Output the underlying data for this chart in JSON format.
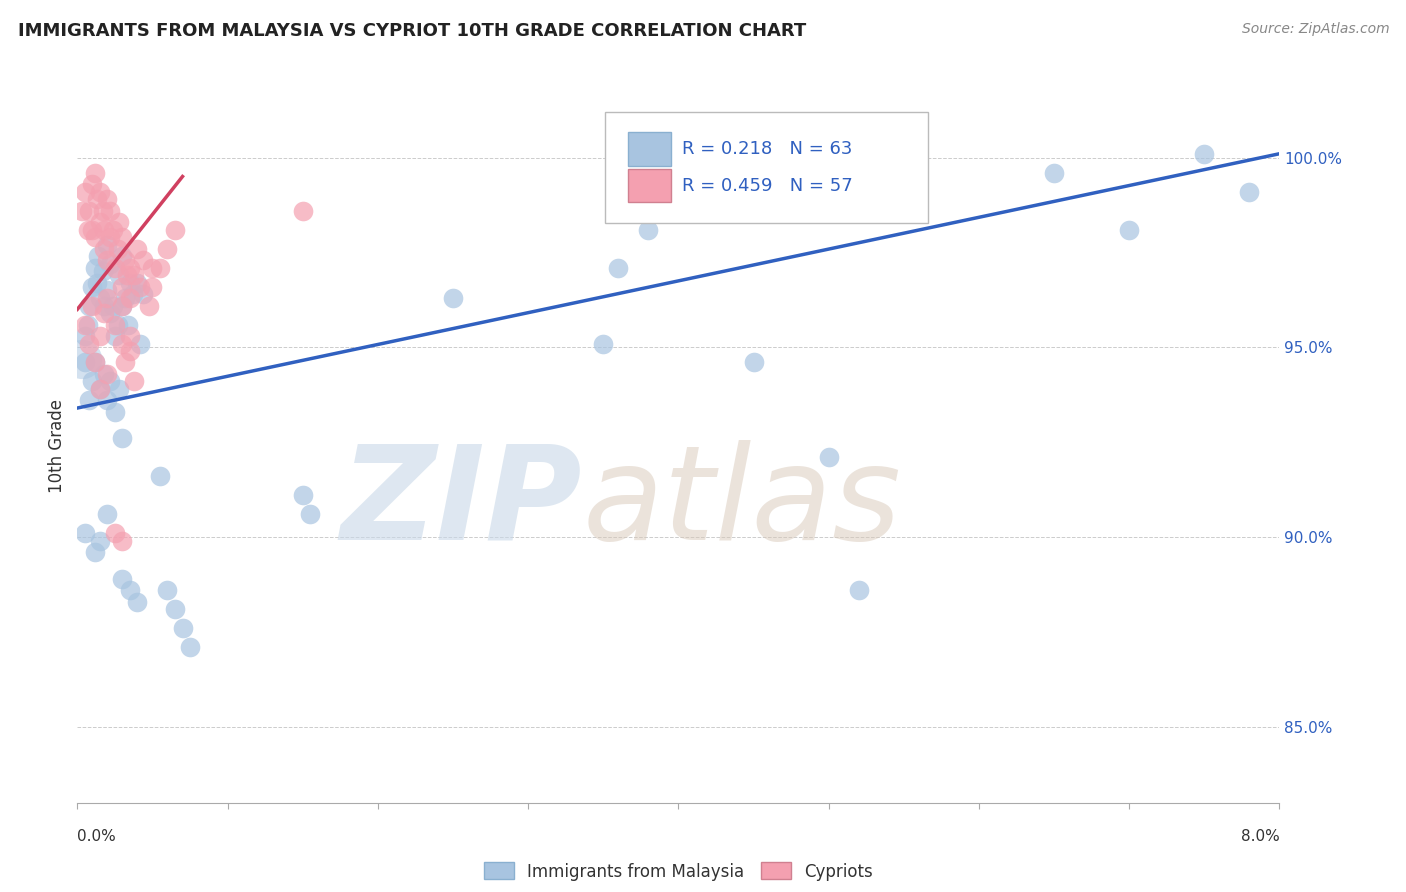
{
  "title": "IMMIGRANTS FROM MALAYSIA VS CYPRIOT 10TH GRADE CORRELATION CHART",
  "source": "Source: ZipAtlas.com",
  "ylabel": "10th Grade",
  "y_ticks": [
    85.0,
    90.0,
    95.0,
    100.0
  ],
  "x_range": [
    0.0,
    8.0
  ],
  "y_range": [
    83.0,
    101.8
  ],
  "R_blue": 0.218,
  "N_blue": 63,
  "R_pink": 0.459,
  "N_pink": 57,
  "legend_label_blue": "Immigrants from Malaysia",
  "legend_label_pink": "Cypriots",
  "blue_color": "#a8c4e0",
  "pink_color": "#f4a0b0",
  "blue_line_color": "#3060c0",
  "pink_line_color": "#d04060",
  "blue_scatter": [
    [
      0.05,
      95.3
    ],
    [
      0.07,
      95.6
    ],
    [
      0.08,
      96.1
    ],
    [
      0.1,
      96.6
    ],
    [
      0.12,
      97.1
    ],
    [
      0.13,
      96.7
    ],
    [
      0.14,
      97.4
    ],
    [
      0.15,
      96.3
    ],
    [
      0.17,
      97.0
    ],
    [
      0.18,
      96.1
    ],
    [
      0.2,
      97.7
    ],
    [
      0.2,
      96.5
    ],
    [
      0.22,
      97.2
    ],
    [
      0.22,
      95.9
    ],
    [
      0.24,
      96.1
    ],
    [
      0.25,
      95.3
    ],
    [
      0.27,
      95.6
    ],
    [
      0.28,
      96.9
    ],
    [
      0.3,
      97.4
    ],
    [
      0.3,
      96.1
    ],
    [
      0.32,
      96.3
    ],
    [
      0.34,
      95.6
    ],
    [
      0.35,
      96.7
    ],
    [
      0.37,
      96.4
    ],
    [
      0.4,
      96.7
    ],
    [
      0.42,
      95.1
    ],
    [
      0.44,
      96.4
    ],
    [
      0.05,
      94.6
    ],
    [
      0.08,
      93.6
    ],
    [
      0.1,
      94.1
    ],
    [
      0.12,
      94.6
    ],
    [
      0.15,
      93.9
    ],
    [
      0.18,
      94.3
    ],
    [
      0.2,
      93.6
    ],
    [
      0.22,
      94.1
    ],
    [
      0.25,
      93.3
    ],
    [
      0.28,
      93.9
    ],
    [
      0.3,
      92.6
    ],
    [
      0.05,
      90.1
    ],
    [
      0.12,
      89.6
    ],
    [
      0.15,
      89.9
    ],
    [
      0.2,
      90.6
    ],
    [
      0.3,
      88.9
    ],
    [
      0.35,
      88.6
    ],
    [
      0.4,
      88.3
    ],
    [
      0.55,
      91.6
    ],
    [
      0.6,
      88.6
    ],
    [
      0.65,
      88.1
    ],
    [
      0.7,
      87.6
    ],
    [
      0.75,
      87.1
    ],
    [
      1.5,
      91.1
    ],
    [
      1.55,
      90.6
    ],
    [
      2.5,
      96.3
    ],
    [
      3.5,
      95.1
    ],
    [
      3.6,
      97.1
    ],
    [
      3.8,
      98.1
    ],
    [
      5.0,
      92.1
    ],
    [
      5.2,
      88.6
    ],
    [
      6.5,
      99.6
    ],
    [
      7.0,
      98.1
    ],
    [
      7.5,
      100.1
    ],
    [
      7.8,
      99.1
    ],
    [
      4.5,
      94.6
    ]
  ],
  "pink_scatter": [
    [
      0.03,
      98.6
    ],
    [
      0.05,
      99.1
    ],
    [
      0.07,
      98.1
    ],
    [
      0.08,
      98.6
    ],
    [
      0.1,
      99.3
    ],
    [
      0.1,
      98.1
    ],
    [
      0.12,
      99.6
    ],
    [
      0.12,
      97.9
    ],
    [
      0.13,
      98.9
    ],
    [
      0.15,
      99.1
    ],
    [
      0.15,
      98.3
    ],
    [
      0.17,
      98.6
    ],
    [
      0.18,
      98.1
    ],
    [
      0.18,
      97.6
    ],
    [
      0.2,
      98.9
    ],
    [
      0.2,
      97.3
    ],
    [
      0.22,
      98.6
    ],
    [
      0.22,
      97.9
    ],
    [
      0.24,
      98.1
    ],
    [
      0.25,
      97.1
    ],
    [
      0.27,
      97.6
    ],
    [
      0.28,
      98.3
    ],
    [
      0.3,
      97.9
    ],
    [
      0.3,
      96.6
    ],
    [
      0.32,
      97.3
    ],
    [
      0.33,
      96.9
    ],
    [
      0.35,
      97.1
    ],
    [
      0.35,
      96.3
    ],
    [
      0.38,
      96.9
    ],
    [
      0.4,
      97.6
    ],
    [
      0.42,
      96.6
    ],
    [
      0.44,
      97.3
    ],
    [
      0.05,
      95.6
    ],
    [
      0.08,
      95.1
    ],
    [
      0.1,
      96.1
    ],
    [
      0.15,
      95.3
    ],
    [
      0.18,
      95.9
    ],
    [
      0.2,
      96.3
    ],
    [
      0.25,
      95.6
    ],
    [
      0.3,
      96.1
    ],
    [
      0.35,
      94.9
    ],
    [
      0.3,
      95.1
    ],
    [
      0.32,
      94.6
    ],
    [
      0.35,
      95.3
    ],
    [
      0.38,
      94.1
    ],
    [
      0.12,
      94.6
    ],
    [
      0.15,
      93.9
    ],
    [
      0.2,
      94.3
    ],
    [
      0.25,
      90.1
    ],
    [
      0.3,
      89.9
    ],
    [
      1.5,
      98.6
    ],
    [
      0.55,
      97.1
    ],
    [
      0.6,
      97.6
    ],
    [
      0.65,
      98.1
    ],
    [
      0.5,
      96.6
    ],
    [
      0.48,
      96.1
    ],
    [
      0.5,
      97.1
    ]
  ],
  "blue_line_x": [
    0.0,
    8.0
  ],
  "blue_line_y": [
    93.4,
    100.1
  ],
  "pink_line_x": [
    0.0,
    0.7
  ],
  "pink_line_y": [
    96.0,
    99.5
  ],
  "large_blue_x": 0.03,
  "large_blue_y": 94.7,
  "watermark_zip": "ZIP",
  "watermark_atlas": "atlas",
  "background_color": "#ffffff"
}
